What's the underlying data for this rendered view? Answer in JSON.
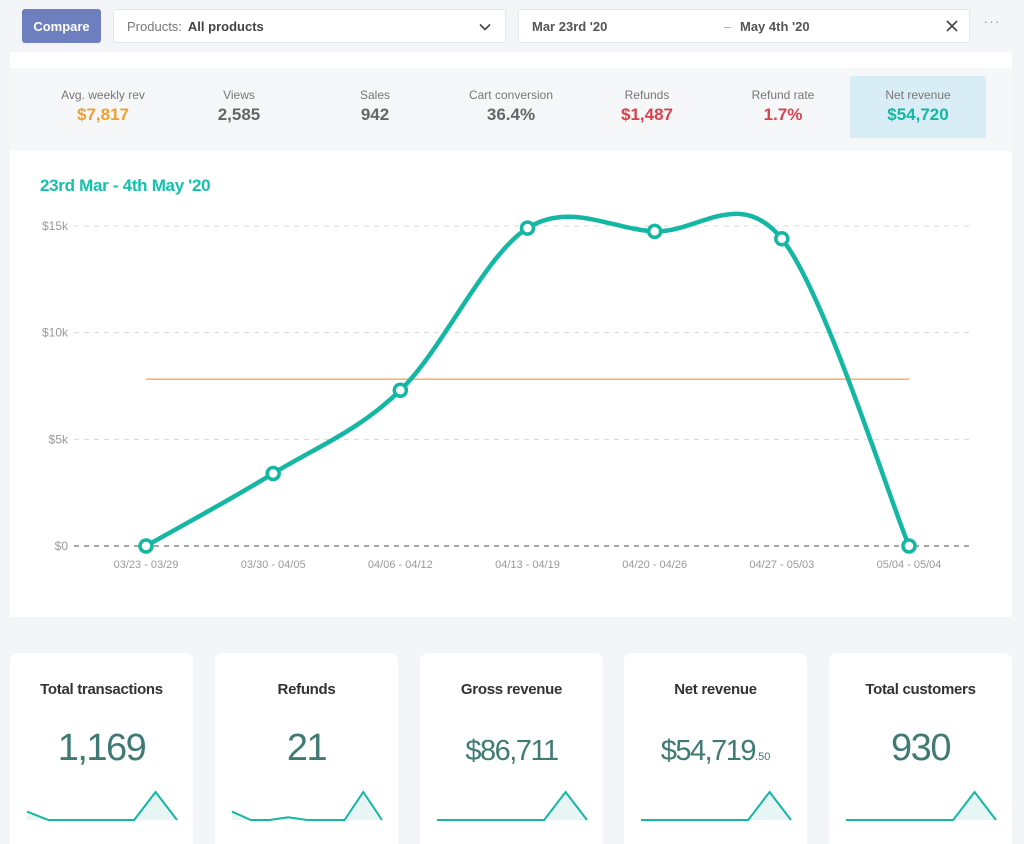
{
  "toolbar": {
    "compare_label": "Compare",
    "products_label": "Products:",
    "products_value": "All products",
    "date_from": "Mar 23rd '20",
    "date_sep": "–",
    "date_to": "May 4th '20",
    "more_label": "···"
  },
  "kpis": [
    {
      "title": "Avg. weekly rev",
      "value": "$7,817",
      "color": "#f0a030"
    },
    {
      "title": "Views",
      "value": "2,585",
      "color": "#666666"
    },
    {
      "title": "Sales",
      "value": "942",
      "color": "#666666"
    },
    {
      "title": "Cart conversion",
      "value": "36.4%",
      "color": "#666666"
    },
    {
      "title": "Refunds",
      "value": "$1,487",
      "color": "#d9414b"
    },
    {
      "title": "Refund rate",
      "value": "1.7%",
      "color": "#d9414b"
    },
    {
      "title": "Net revenue",
      "value": "$54,720",
      "color": "#13b7a3",
      "active": true
    }
  ],
  "chart_title": "23rd Mar - 4th May '20",
  "chart_data": {
    "type": "line",
    "categories": [
      "03/23 - 03/29",
      "03/30 - 04/05",
      "04/06 - 04/12",
      "04/13 - 04/19",
      "04/20 - 04/26",
      "04/27 - 05/03",
      "05/04 - 05/04"
    ],
    "series": [
      {
        "values": [
          0,
          3400,
          7300,
          14900,
          14750,
          14400,
          0
        ],
        "color": "#13b7a3"
      }
    ],
    "average_line": {
      "value": 7817,
      "color": "#f3b57a"
    },
    "y_ticks": [
      {
        "value": 0,
        "label": "$0"
      },
      {
        "value": 5000,
        "label": "$5k"
      },
      {
        "value": 10000,
        "label": "$10k"
      },
      {
        "value": 15000,
        "label": "$15k"
      }
    ],
    "ylim": [
      0,
      15000
    ],
    "grid": true
  },
  "cards": [
    {
      "title": "Total transactions",
      "value": "1,169",
      "spark": [
        0.3,
        0,
        0,
        0,
        0,
        0,
        1,
        0
      ]
    },
    {
      "title": "Refunds",
      "value": "21",
      "spark": [
        0.3,
        0,
        0,
        0.1,
        0,
        0,
        0,
        1,
        0
      ]
    },
    {
      "title": "Gross revenue",
      "value": "$86,711",
      "spark": [
        0,
        0,
        0,
        0,
        0,
        0,
        1,
        0
      ]
    },
    {
      "title": "Net revenue",
      "value": "$54,719",
      "cents": ".50",
      "spark": [
        0,
        0,
        0,
        0,
        0,
        0,
        1,
        0
      ]
    },
    {
      "title": "Total customers",
      "value": "930",
      "spark": [
        0,
        0,
        0,
        0,
        0,
        0,
        1,
        0
      ]
    }
  ]
}
